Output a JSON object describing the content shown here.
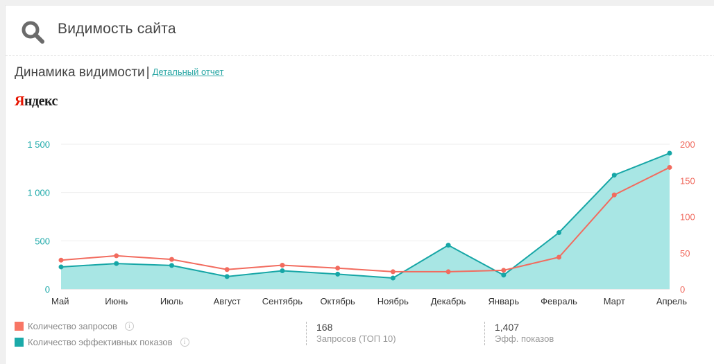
{
  "header": {
    "title": "Видимость сайта",
    "icon": "search-icon"
  },
  "subtitle": {
    "title": "Динамика видимости",
    "separator": "|",
    "link": "Детальный отчет"
  },
  "brand": {
    "first": "Я",
    "rest": "ндекс"
  },
  "legend": [
    {
      "label": "Количество запросов",
      "color": "#f87665",
      "info": "i"
    },
    {
      "label": "Количество эффективных показов",
      "color": "#1baaa9",
      "info": "i"
    }
  ],
  "stats": [
    {
      "value": "168",
      "label": "Запросов (ТОП 10)"
    },
    {
      "value": "1,407",
      "label": "Эфф. показов"
    }
  ],
  "chart_data": {
    "type": "line",
    "categories": [
      "Май",
      "Июнь",
      "Июль",
      "Август",
      "Сентябрь",
      "Октябрь",
      "Ноябрь",
      "Декабрь",
      "Январь",
      "Февраль",
      "Март",
      "Апрель"
    ],
    "highlighted_category": "Апрель",
    "series": [
      {
        "name": "Количество эффективных показов",
        "axis": "left",
        "style": "area",
        "color": "#16a6a6",
        "fill": "#a8e6e4",
        "values": [
          230,
          265,
          245,
          130,
          190,
          155,
          115,
          455,
          145,
          585,
          1180,
          1407
        ]
      },
      {
        "name": "Количество запросов",
        "axis": "right",
        "style": "line",
        "color": "#f26b5e",
        "values": [
          40,
          46,
          41,
          27,
          33,
          29,
          24,
          24,
          26,
          44,
          130,
          168
        ]
      }
    ],
    "y_left": {
      "min": 0,
      "max": 1500,
      "ticks": [
        0,
        500,
        1000,
        1500
      ],
      "tick_labels": [
        "0",
        "500",
        "1 000",
        "1 500"
      ],
      "color": "#1ba8a8"
    },
    "y_right": {
      "min": 0,
      "max": 200,
      "ticks": [
        0,
        50,
        100,
        150,
        200
      ],
      "tick_labels": [
        "0",
        "50",
        "100",
        "150",
        "200"
      ],
      "color": "#f0685c"
    },
    "grid": true,
    "gridColor": "#eeeeee"
  }
}
